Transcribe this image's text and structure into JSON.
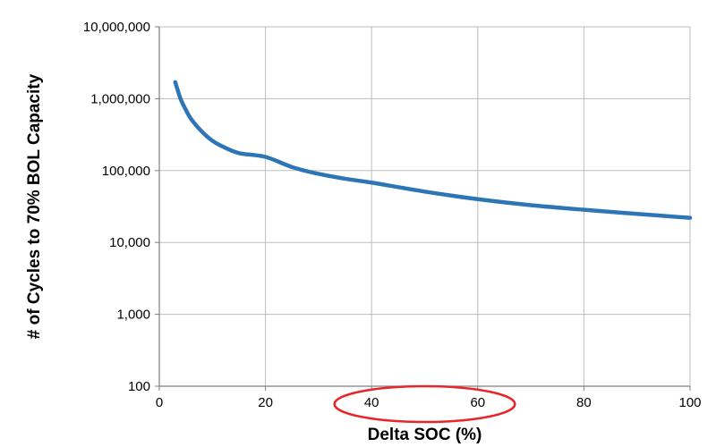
{
  "chart_data": {
    "type": "line",
    "title": "",
    "xlabel": "Delta SOC (%)",
    "ylabel": "# of Cycles to 70% BOL Capacity",
    "xlim": [
      0,
      100
    ],
    "ylim": [
      100,
      10000000
    ],
    "yscale": "log",
    "grid": true,
    "x_ticks": [
      0,
      20,
      40,
      60,
      80,
      100
    ],
    "x_tick_labels": [
      "0",
      "20",
      "40",
      "60",
      "80",
      "100"
    ],
    "y_ticks": [
      100,
      1000,
      10000,
      100000,
      1000000,
      10000000
    ],
    "y_tick_labels": [
      "100",
      "1,000",
      "10,000",
      "100,000",
      "1,000,000",
      "10,000,000"
    ],
    "series": [
      {
        "color": "#2e75b6",
        "x": [
          3,
          4,
          5,
          6,
          8,
          10,
          12,
          15,
          20,
          25,
          30,
          35,
          40,
          50,
          60,
          70,
          80,
          90,
          100
        ],
        "y": [
          1700000,
          1000000,
          700000,
          520000,
          350000,
          260000,
          215000,
          175000,
          155000,
          112000,
          90000,
          77000,
          68000,
          51000,
          40000,
          33000,
          28500,
          25000,
          22000
        ]
      }
    ],
    "annotations": [
      {
        "type": "ellipse",
        "color": "#e8262a",
        "x_center": 50,
        "x_span": [
          33,
          67
        ]
      }
    ]
  }
}
